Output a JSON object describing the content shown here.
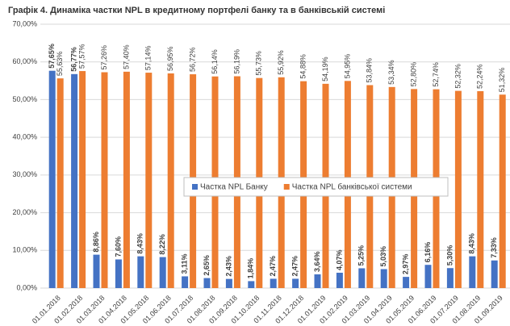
{
  "chart_data": {
    "type": "bar",
    "title": "Графік 4. Динаміка частки NPL в кредитному портфелі банку та в банківській системі",
    "categories": [
      "01.01.2018",
      "01.02.2018",
      "01.03.2018",
      "01.04.2018",
      "01.05.2018",
      "01.06.2018",
      "01.07.2018",
      "01.08.2018",
      "01.09.2018",
      "01.10.2018",
      "01.11.2018",
      "01.12.2018",
      "01.01.2019",
      "01.02.2019",
      "01.03.2019",
      "01.04.2019",
      "01.05.2019",
      "01.06.2019",
      "01.07.2019",
      "01.08.2019",
      "01.09.2019"
    ],
    "series": [
      {
        "name": "Частка NPL Банку",
        "color": "#4472c4",
        "values": [
          57.65,
          56.77,
          8.86,
          7.6,
          8.43,
          8.22,
          3.11,
          2.65,
          2.43,
          1.84,
          2.47,
          2.47,
          3.64,
          4.07,
          5.25,
          5.03,
          2.97,
          6.16,
          5.3,
          8.43,
          7.33
        ],
        "value_labels": [
          "57,65%",
          "56,77%",
          "8,86%",
          "7,60%",
          "8,43%",
          "8,22%",
          "3,11%",
          "2,65%",
          "2,43%",
          "1,84%",
          "2,47%",
          "2,47%",
          "3,64%",
          "4,07%",
          "5,25%",
          "5,03%",
          "2,97%",
          "6,16%",
          "5,30%",
          "8,43%",
          "7,33%"
        ]
      },
      {
        "name": "Частка NPL банківської системи",
        "color": "#ed7d31",
        "values": [
          55.63,
          57.57,
          57.26,
          57.4,
          57.14,
          56.95,
          56.72,
          56.14,
          56.19,
          55.73,
          55.92,
          54.88,
          54.19,
          54.95,
          53.84,
          53.34,
          52.8,
          52.74,
          52.32,
          52.24,
          51.32
        ],
        "value_labels": [
          "55,63%",
          "57,57%",
          "57,26%",
          "57,40%",
          "57,14%",
          "56,95%",
          "56,72%",
          "56,14%",
          "56,19%",
          "55,73%",
          "55,92%",
          "54,88%",
          "54,19%",
          "54,95%",
          "53,84%",
          "53,34%",
          "52,80%",
          "52,74%",
          "52,32%",
          "52,24%",
          "51,32%"
        ]
      }
    ],
    "ylim": [
      0,
      70
    ],
    "yticks": [
      {
        "value": 0,
        "label": "0,00%"
      },
      {
        "value": 10,
        "label": "10,00%"
      },
      {
        "value": 20,
        "label": "20,00%"
      },
      {
        "value": 30,
        "label": "30,00%"
      },
      {
        "value": 40,
        "label": "40,00%"
      },
      {
        "value": 50,
        "label": "50,00%"
      },
      {
        "value": 60,
        "label": "60,00%"
      },
      {
        "value": 70,
        "label": "70,00%"
      }
    ],
    "grid": true,
    "legend": "center"
  }
}
